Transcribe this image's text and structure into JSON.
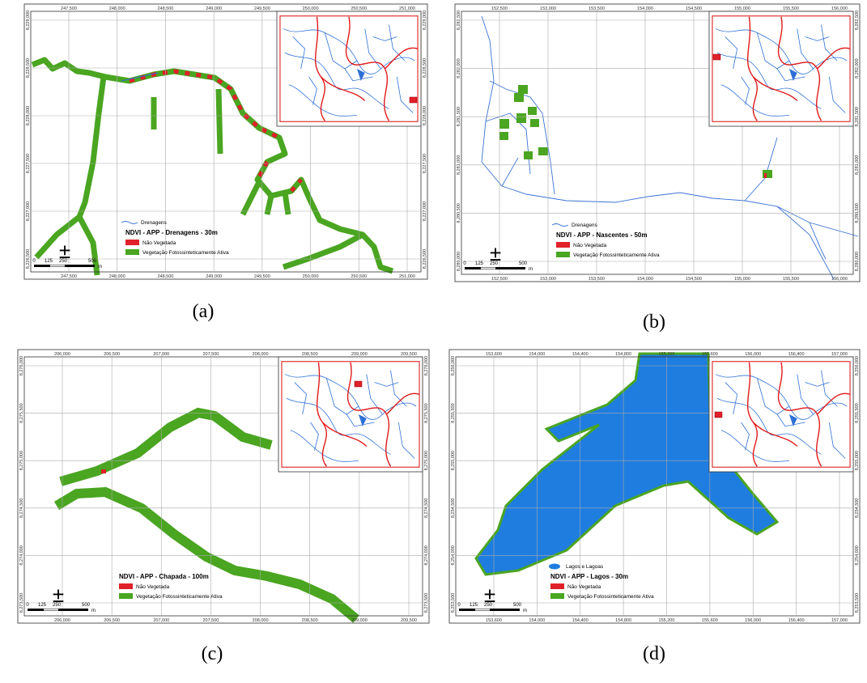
{
  "panels": [
    {
      "label": "(a)",
      "x_ticks": [
        "247,500",
        "248,000",
        "248,500",
        "249,000",
        "249,500",
        "250,000",
        "250,500",
        "251,000"
      ],
      "y_ticks": [
        "8,229,000",
        "8,228,500",
        "8,228,000",
        "8,227,500",
        "8,227,000",
        "8,226,500"
      ],
      "north": "±",
      "scale": [
        "0",
        "125",
        "250",
        "500",
        "m"
      ],
      "legend": {
        "layer": "Drenagens",
        "title": "NDVI - APP - Drenagens - 30m",
        "items": [
          "Não Vegetada",
          "Vegetação Fotossinteticamente Ativa"
        ]
      }
    },
    {
      "label": "(b)",
      "x_ticks": [
        "152,500",
        "153,000",
        "153,500",
        "154,000",
        "154,500",
        "155,000",
        "155,500",
        "156,000"
      ],
      "y_ticks": [
        "8,282,500",
        "8,282,000",
        "8,281,500",
        "8,281,000",
        "8,280,500",
        "8,280,000"
      ],
      "north": "±",
      "scale": [
        "0",
        "125",
        "250",
        "500",
        "m"
      ],
      "legend": {
        "layer": "Drenagens",
        "title": "NDVI - APP - Nascentes - 50m",
        "items": [
          "Não Vegetada",
          "Vegetação Fotossinteticamente Ativa"
        ]
      }
    },
    {
      "label": "(c)",
      "x_ticks": [
        "206,000",
        "206,500",
        "207,000",
        "207,500",
        "208,000",
        "208,500",
        "209,000",
        "209,500"
      ],
      "y_ticks": [
        "8,276,000",
        "8,275,500",
        "8,275,000",
        "8,274,500",
        "8,274,000",
        "8,273,500"
      ],
      "north": "±",
      "scale": [
        "0",
        "125",
        "250",
        "500",
        "m"
      ],
      "legend": {
        "title": "NDVI - APP - Chapada - 100m",
        "items": [
          "Não Vegetada",
          "Vegetação Fotossinteticamente Ativa"
        ]
      }
    },
    {
      "label": "(d)",
      "x_ticks": [
        "153,600",
        "154,000",
        "154,400",
        "154,800",
        "155,200",
        "155,600",
        "156,000",
        "156,400",
        "157,000"
      ],
      "y_ticks": [
        "8,256,000",
        "8,255,500",
        "8,255,000",
        "8,254,500",
        "8,254,000",
        "8,253,500"
      ],
      "north": "±",
      "scale": [
        "0",
        "125",
        "250",
        "500",
        "m"
      ],
      "legend": {
        "layer": "Lagos e Lagoas",
        "title": "NDVI - APP - Lagos - 30m",
        "items": [
          "Não Vegetada",
          "Vegetação Fotossinteticamente Ativa"
        ]
      }
    }
  ]
}
